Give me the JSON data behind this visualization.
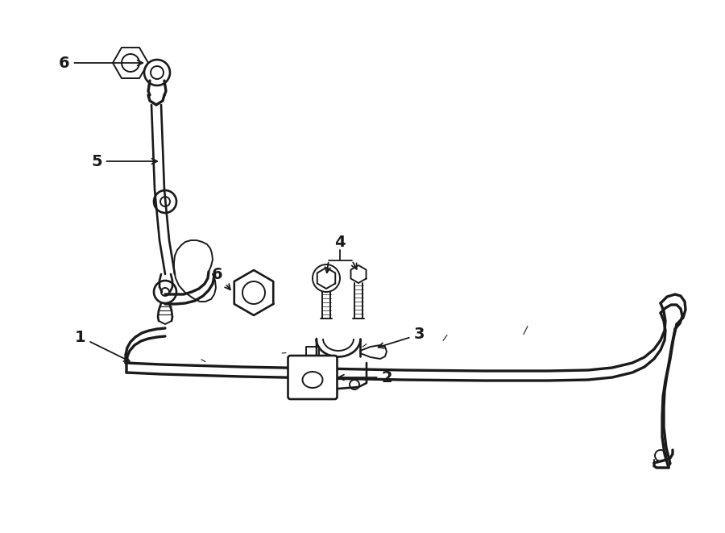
{
  "bg_color": "#ffffff",
  "line_color": "#1a1a1a",
  "lw": 1.4,
  "figsize": [
    9.0,
    6.61
  ],
  "dpi": 100
}
